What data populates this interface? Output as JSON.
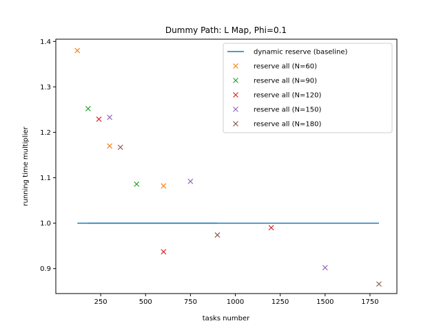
{
  "chart_data": {
    "type": "scatter",
    "title": "Dummy Path: L Map, Phi=0.1",
    "xlabel": "tasks number",
    "ylabel": "running time multiplier",
    "xlim": [
      0,
      1900
    ],
    "ylim": [
      0.845,
      1.405
    ],
    "xticks": [
      250,
      500,
      750,
      1000,
      1250,
      1500,
      1750
    ],
    "xtick_labels": [
      "250",
      "500",
      "750",
      "1000",
      "1250",
      "1500",
      "1750"
    ],
    "yticks": [
      0.9,
      1.0,
      1.1,
      1.2,
      1.3,
      1.4
    ],
    "ytick_labels": [
      "0.9",
      "1.0",
      "1.1",
      "1.2",
      "1.3",
      "1.4"
    ],
    "grid": false,
    "legend_position": "top-right",
    "baseline": {
      "name": "dynamic reserve (baseline)",
      "color": "#1f77b4",
      "segments": [
        {
          "x": [
            120,
            1800
          ],
          "y": [
            1.0,
            1.0
          ]
        },
        {
          "x": [
            180,
            900
          ],
          "y": [
            1.0,
            1.0
          ]
        }
      ]
    },
    "series": [
      {
        "name": "reserve all (N=60)",
        "color": "#ff7f0e",
        "x": [
          120,
          300,
          600
        ],
        "y": [
          1.38,
          1.17,
          1.082
        ]
      },
      {
        "name": "reserve all (N=90)",
        "color": "#2ca02c",
        "x": [
          180,
          450
        ],
        "y": [
          1.252,
          1.086
        ]
      },
      {
        "name": "reserve all (N=120)",
        "color": "#d62728",
        "x": [
          240,
          600,
          1200
        ],
        "y": [
          1.229,
          0.937,
          0.99
        ]
      },
      {
        "name": "reserve all (N=150)",
        "color": "#9467bd",
        "x": [
          300,
          750,
          1500
        ],
        "y": [
          1.233,
          1.092,
          0.902
        ]
      },
      {
        "name": "reserve all (N=180)",
        "color": "#8c564b",
        "x": [
          360,
          900,
          1800
        ],
        "y": [
          1.167,
          0.974,
          0.866
        ]
      }
    ]
  }
}
